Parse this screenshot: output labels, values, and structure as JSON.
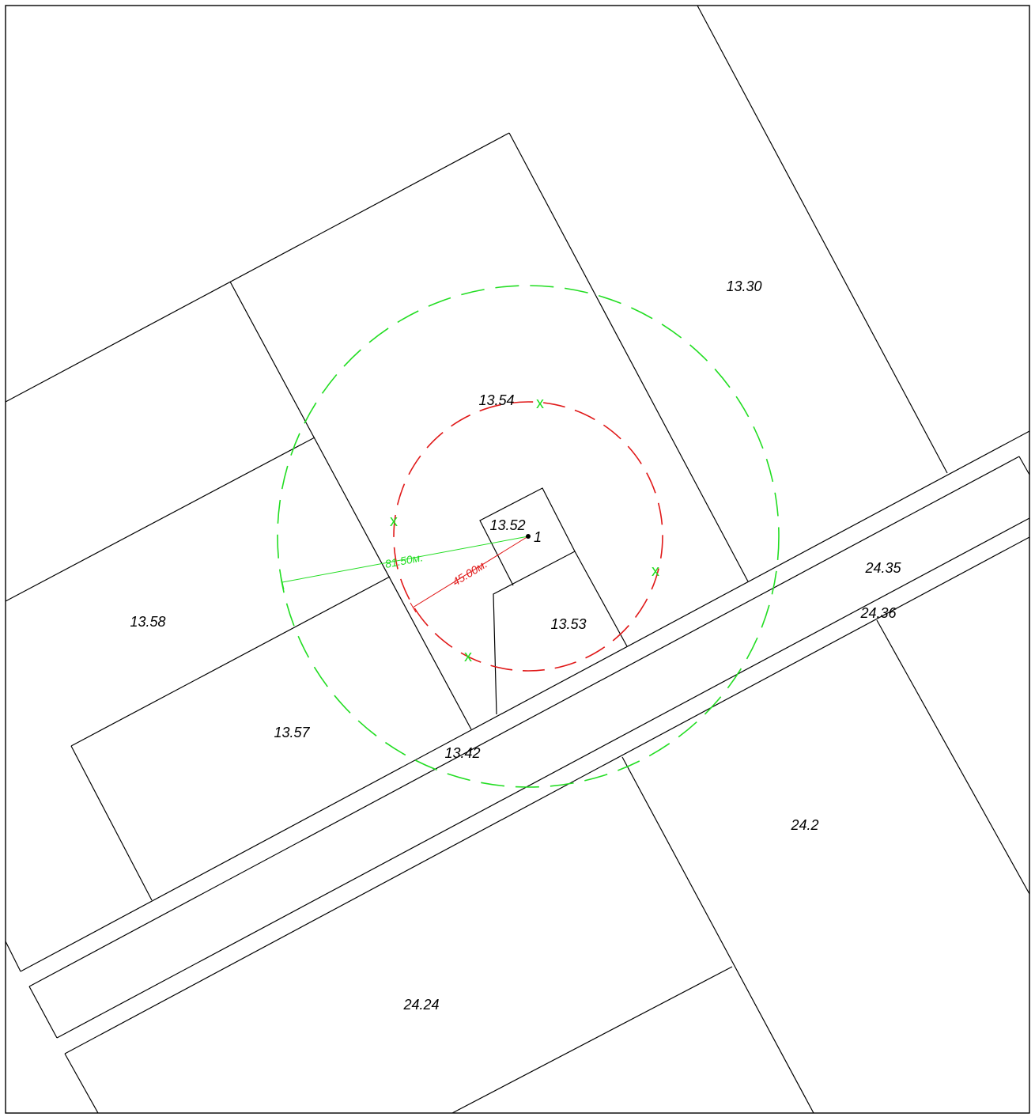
{
  "colors": {
    "outer_zone": "#22dd22",
    "inner_zone": "#e01818",
    "markers": "#22dd22",
    "boundaries": "#000000"
  },
  "parcels": {
    "p_13_30": "13.30",
    "p_13_54": "13.54",
    "p_13_52": "13.52",
    "p_13_53": "13.53",
    "p_13_58": "13.58",
    "p_13_57": "13.57",
    "p_13_42": "13.42",
    "p_24_35": "24.35",
    "p_24_36": "24.36",
    "p_24_2": "24.2",
    "p_24_24": "24.24"
  },
  "source_point": {
    "label": "1"
  },
  "dimensions": {
    "outer_radius": "81.50м.",
    "inner_radius": "45.00м."
  },
  "marker_symbol": "x"
}
